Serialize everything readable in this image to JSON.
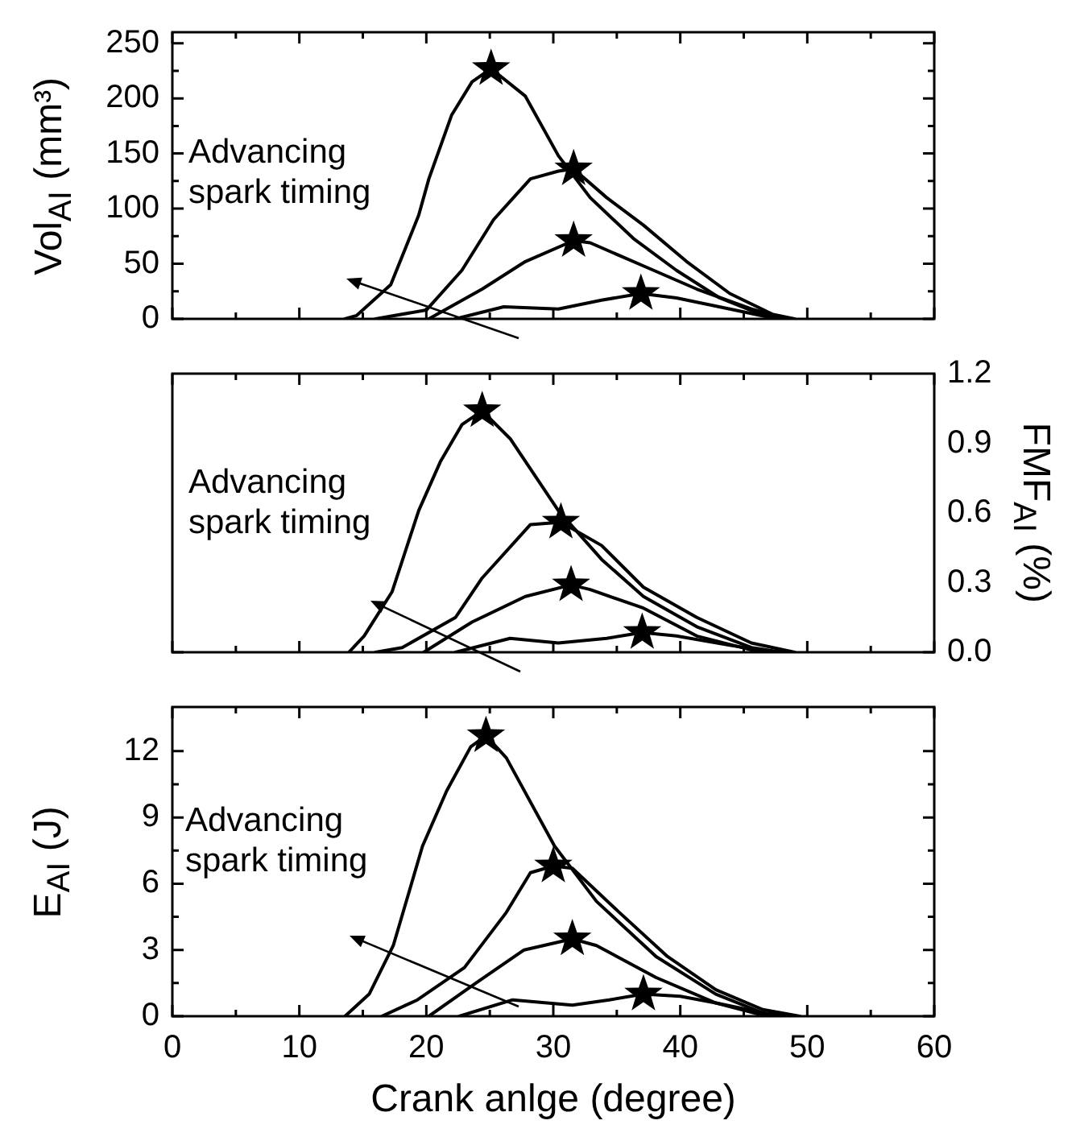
{
  "chart_data": [
    {
      "type": "line",
      "ylabel": "Vol$_{AI}$ (mm³)",
      "xlim": [
        0,
        60
      ],
      "xticks": [
        0,
        10,
        20,
        30,
        40,
        50,
        60
      ],
      "ylim": [
        0,
        260
      ],
      "yticks": [
        0,
        50,
        100,
        150,
        200,
        250
      ],
      "tick_labels": "y",
      "annotations": [
        "Advancing spark timing"
      ],
      "series": [
        {
          "color": "#000000",
          "x": [
            13.6,
            14.5,
            17.2,
            19.4,
            20.2,
            22.0,
            23.6,
            25.1,
            27.8,
            30.4,
            32.9,
            36.3,
            39.7,
            43.1,
            46.4,
            48.1
          ],
          "values": [
            0,
            3,
            31,
            94,
            127,
            185,
            215,
            227,
            202,
            148,
            110,
            73,
            44,
            19,
            4,
            0
          ]
        },
        {
          "color": "#000000",
          "x": [
            16,
            20,
            22.8,
            25.3,
            28.2,
            30.4,
            31.6,
            34.2,
            37.1,
            40.5,
            43.9,
            47.3,
            49
          ],
          "values": [
            0,
            8,
            44,
            90,
            127,
            134,
            136,
            110,
            85,
            52,
            23,
            4,
            0
          ]
        },
        {
          "color": "#000000",
          "x": [
            20.2,
            24.4,
            27.8,
            31.6,
            32.9,
            37.1,
            41.3,
            45.6,
            48.4
          ],
          "values": [
            0,
            27,
            52,
            71,
            69,
            48,
            27,
            9,
            0
          ]
        },
        {
          "color": "#000000",
          "x": [
            22.3,
            26.1,
            30.4,
            33.8,
            36.9,
            39.7,
            43.9,
            47.6
          ],
          "values": [
            0,
            11,
            9,
            17,
            23,
            19,
            9,
            0
          ]
        },
        {
          "type": "scatter",
          "marker": "star",
          "color": "#000000",
          "x": [
            25.1,
            31.6,
            31.6,
            36.9
          ],
          "values": [
            227,
            136,
            71,
            23
          ]
        }
      ]
    },
    {
      "type": "line",
      "y2label": "FMF$_{AI}$ (%)",
      "xlim": [
        0,
        60
      ],
      "xticks": [
        0,
        10,
        20,
        30,
        40,
        50,
        60
      ],
      "y2lim": [
        0,
        1.2
      ],
      "y2ticks": [
        {
          "value": 0,
          "label": "0.0"
        },
        0.3,
        0.6,
        0.9,
        1.2
      ],
      "tick_labels": "y",
      "annotations": [
        "Advancing spark timing"
      ],
      "series": [
        {
          "color": "#000000",
          "axis": "y2",
          "x": [
            13.9,
            15.1,
            17.3,
            19.4,
            21.1,
            22.8,
            24.4,
            26.6,
            30.4,
            33.8,
            37.1,
            41.3,
            45.6,
            48
          ],
          "values": [
            0,
            0.07,
            0.26,
            0.61,
            0.82,
            0.98,
            1.04,
            0.92,
            0.61,
            0.4,
            0.24,
            0.11,
            0.02,
            0
          ]
        },
        {
          "color": "#000000",
          "axis": "y2",
          "x": [
            16,
            18.1,
            22.3,
            24.4,
            28.2,
            30.6,
            33.8,
            37.1,
            41.3,
            45.6,
            49
          ],
          "values": [
            0,
            0.02,
            0.15,
            0.32,
            0.55,
            0.56,
            0.46,
            0.28,
            0.15,
            0.04,
            0
          ]
        },
        {
          "color": "#000000",
          "axis": "y2",
          "x": [
            19.8,
            23.6,
            27.8,
            31.4,
            32.9,
            37.1,
            41.3,
            45.6,
            48.3
          ],
          "values": [
            0,
            0.13,
            0.24,
            0.29,
            0.27,
            0.19,
            0.07,
            0.01,
            0
          ]
        },
        {
          "color": "#000000",
          "axis": "y2",
          "x": [
            22.3,
            26.6,
            30.4,
            34.2,
            37,
            39.7,
            43.9,
            47.5
          ],
          "values": [
            0,
            0.06,
            0.04,
            0.06,
            0.085,
            0.07,
            0.03,
            0
          ]
        },
        {
          "type": "scatter",
          "marker": "star",
          "color": "#000000",
          "axis": "y2",
          "x": [
            24.4,
            30.6,
            31.4,
            37
          ],
          "values": [
            1.04,
            0.56,
            0.29,
            0.085
          ]
        }
      ]
    },
    {
      "type": "line",
      "xlabel": "Crank anlge (degree)",
      "ylabel": "E$_{AI}$ (J)",
      "xlim": [
        0,
        60
      ],
      "xticks": [
        0,
        10,
        20,
        30,
        40,
        50,
        60
      ],
      "ylim": [
        0,
        14
      ],
      "yticks": [
        0,
        3,
        6,
        9,
        12
      ],
      "annotations": [
        "Advancing spark timing"
      ],
      "series": [
        {
          "color": "#000000",
          "x": [
            13.6,
            15.5,
            17.4,
            19.7,
            21.6,
            23.5,
            24.7,
            26.3,
            30.1,
            33.4,
            38.1,
            42.8,
            46.5,
            48.9
          ],
          "values": [
            0,
            1,
            3.2,
            7.7,
            10.2,
            12.2,
            12.7,
            11.7,
            7.7,
            5.2,
            2.7,
            1,
            0.15,
            0
          ]
        },
        {
          "color": "#000000",
          "x": [
            16.5,
            19.3,
            23,
            26.3,
            28.2,
            30,
            31.5,
            35.2,
            39,
            42.8,
            46.5,
            49.4
          ],
          "values": [
            0,
            0.74,
            2.2,
            4.7,
            6.5,
            6.8,
            6.7,
            4.7,
            2.7,
            1.2,
            0.3,
            0
          ]
        },
        {
          "color": "#000000",
          "x": [
            20.2,
            23.9,
            27.7,
            31.5,
            33.4,
            38.1,
            42.8,
            47.8
          ],
          "values": [
            0,
            1.5,
            3,
            3.5,
            3.2,
            1.75,
            0.6,
            0
          ]
        },
        {
          "color": "#000000",
          "x": [
            22.6,
            26.8,
            31.5,
            34.4,
            37.1,
            40,
            42.8,
            46.8
          ],
          "values": [
            0,
            0.74,
            0.5,
            0.74,
            1,
            0.9,
            0.6,
            0
          ]
        },
        {
          "type": "scatter",
          "marker": "star",
          "color": "#000000",
          "x": [
            24.7,
            30,
            31.5,
            37.1
          ],
          "values": [
            12.7,
            6.8,
            3.5,
            1
          ]
        }
      ]
    }
  ]
}
